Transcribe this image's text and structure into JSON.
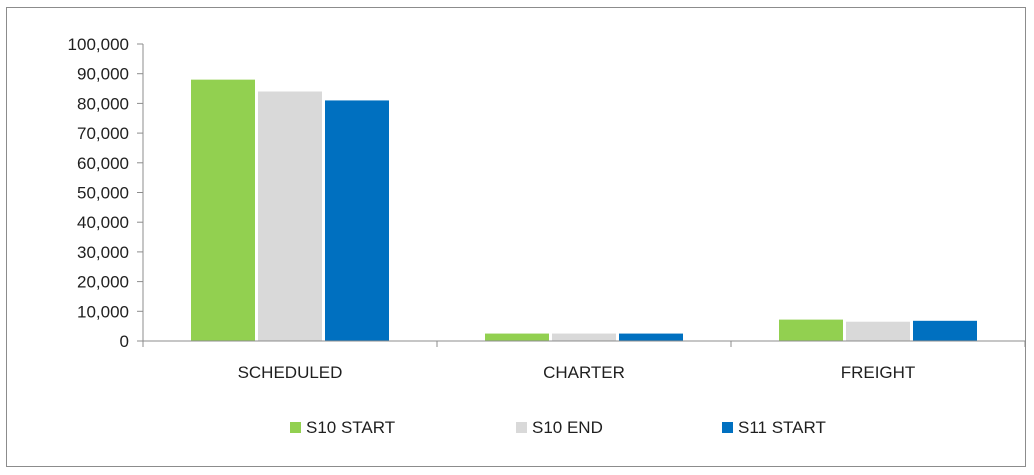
{
  "chart_data": {
    "type": "bar",
    "title": "",
    "xlabel": "",
    "ylabel": "",
    "categories": [
      "SCHEDULED",
      "CHARTER",
      "FREIGHT"
    ],
    "series": [
      {
        "name": "S10 START",
        "color": "#92d050",
        "values": [
          88000,
          2500,
          7200
        ]
      },
      {
        "name": "S10 END",
        "color": "#d9d9d9",
        "values": [
          84000,
          2500,
          6500
        ]
      },
      {
        "name": "S11 START",
        "color": "#0070c0",
        "values": [
          81000,
          2500,
          6800
        ]
      }
    ],
    "ylim": [
      0,
      100000
    ],
    "yticks": [
      0,
      10000,
      20000,
      30000,
      40000,
      50000,
      60000,
      70000,
      80000,
      90000,
      100000
    ],
    "ytick_labels": [
      "0",
      "10,000",
      "20,000",
      "30,000",
      "40,000",
      "50,000",
      "60,000",
      "70,000",
      "80,000",
      "90,000",
      "100,000"
    ],
    "grid": false,
    "legend_position": "bottom",
    "axis_color": "#8c8c8c"
  }
}
